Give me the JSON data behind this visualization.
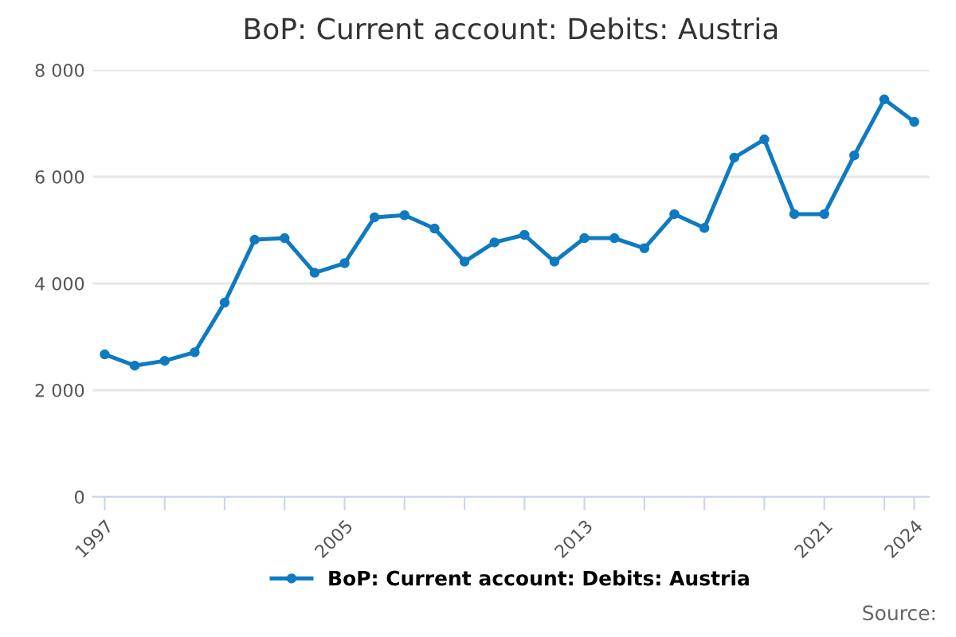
{
  "chart_data": {
    "type": "line",
    "title": "BoP: Current account: Debits: Austria",
    "x": [
      1997,
      1998,
      1999,
      2000,
      2001,
      2002,
      2003,
      2004,
      2005,
      2006,
      2007,
      2008,
      2009,
      2010,
      2011,
      2012,
      2013,
      2014,
      2015,
      2016,
      2017,
      2018,
      2019,
      2020,
      2021,
      2022,
      2023,
      2024
    ],
    "series": [
      {
        "name": "BoP: Current account: Debits: Austria",
        "color": "#0e7ac0",
        "values": [
          2670,
          2460,
          2550,
          2710,
          3640,
          4820,
          4850,
          4200,
          4380,
          5240,
          5280,
          5030,
          4410,
          4770,
          4910,
          4410,
          4850,
          4850,
          4660,
          5300,
          5040,
          6360,
          6700,
          5300,
          5300,
          6400,
          7450,
          7030
        ]
      }
    ],
    "xlim": [
      1996.6,
      2024.5
    ],
    "xticks": [
      1997,
      {
        "value": 1999,
        "label": null
      },
      {
        "value": 2001,
        "label": null
      },
      {
        "value": 2003,
        "label": null
      },
      2005,
      {
        "value": 2007,
        "label": null
      },
      {
        "value": 2009,
        "label": null
      },
      {
        "value": 2011,
        "label": null
      },
      2013,
      {
        "value": 2015,
        "label": null
      },
      {
        "value": 2017,
        "label": null
      },
      {
        "value": 2019,
        "label": null
      },
      2021,
      {
        "value": 2023,
        "label": null
      },
      2024
    ],
    "ylim": [
      0,
      8000
    ],
    "yticks": [
      {
        "value": 0,
        "label": "0"
      },
      {
        "value": 2000,
        "label": "2 000"
      },
      {
        "value": 4000,
        "label": "4 000"
      },
      {
        "value": 6000,
        "label": "6 000"
      },
      {
        "value": 8000,
        "label": "8 000"
      }
    ],
    "grid": "y",
    "legend": "bottom",
    "marker": "circle",
    "line_style": "solid",
    "annotations": [
      "Source:"
    ]
  }
}
